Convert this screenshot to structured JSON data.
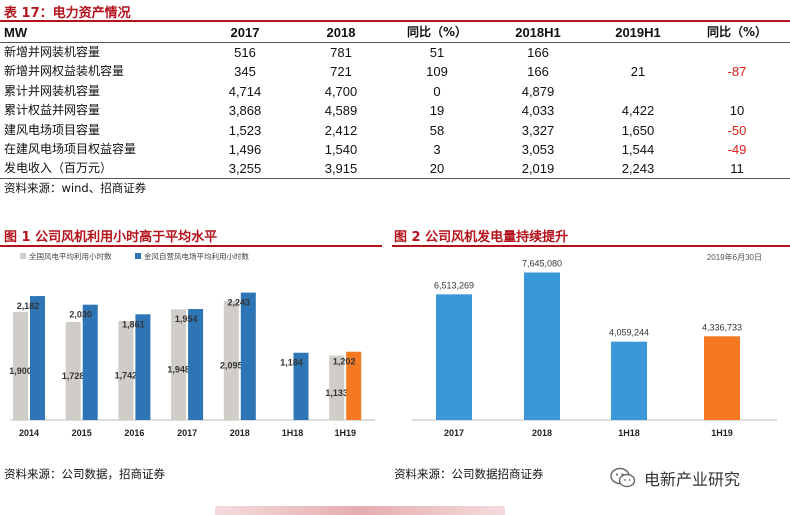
{
  "table": {
    "title": "表 17：电力资产情况",
    "header": [
      "MW",
      "2017",
      "2018",
      "同比（%）",
      "2018H1",
      "2019H1",
      "同比（%）"
    ],
    "rows": [
      {
        "label": "新增并网装机容量",
        "v2017": "516",
        "v2018": "781",
        "yoy1": "51",
        "h1_2018": "166",
        "h1_2019": "",
        "yoy2": ""
      },
      {
        "label": "新增并网权益装机容量",
        "v2017": "345",
        "v2018": "721",
        "yoy1": "109",
        "h1_2018": "166",
        "h1_2019": "21",
        "yoy2": "-87"
      },
      {
        "label": "累计并网装机容量",
        "v2017": "4,714",
        "v2018": "4,700",
        "yoy1": "0",
        "h1_2018": "4,879",
        "h1_2019": "",
        "yoy2": ""
      },
      {
        "label": "累计权益并网容量",
        "v2017": "3,868",
        "v2018": "4,589",
        "yoy1": "19",
        "h1_2018": "4,033",
        "h1_2019": "4,422",
        "yoy2": "10"
      },
      {
        "label": "建风电场项目容量",
        "v2017": "1,523",
        "v2018": "2,412",
        "yoy1": "58",
        "h1_2018": "3,327",
        "h1_2019": "1,650",
        "yoy2": "-50"
      },
      {
        "label": "在建风电场项目权益容量",
        "v2017": "1,496",
        "v2018": "1,540",
        "yoy1": "3",
        "h1_2018": "3,053",
        "h1_2019": "1,544",
        "yoy2": "-49"
      },
      {
        "label": "发电收入（百万元）",
        "v2017": "3,255",
        "v2018": "3,915",
        "yoy1": "20",
        "h1_2018": "2,019",
        "h1_2019": "2,243",
        "yoy2": "11"
      }
    ],
    "source": "资料来源：wind、招商证券"
  },
  "figure1": {
    "title": "图 1 公司风机利用小时高于平均水平",
    "source": "资料来源：公司数据，招商证券"
  },
  "figure2": {
    "title": "图 2 公司风机发电量持续提升",
    "note": "2019年6月30日",
    "source": "资料来源：公司数据招商证券"
  },
  "watermark": {
    "text": "电新产业研究"
  },
  "colors": {
    "accent": "#b5121b",
    "gray_bar": "#d0ccc7",
    "blue_bar": "#2e75b6",
    "blue_bar2": "#3a98d8",
    "orange_bar": "#f47920",
    "negative": "#e0201b"
  },
  "chart_data": [
    {
      "type": "bar",
      "categories": [
        "2014",
        "2015",
        "2016",
        "2017",
        "2018",
        "1H18",
        "1H19"
      ],
      "series": [
        {
          "name": "全国风电平均利用小时数",
          "values": [
            1900,
            1728,
            1742,
            1948,
            2095,
            null,
            1133
          ]
        },
        {
          "name": "金风自营风电场平均利用小时数",
          "values": [
            2182,
            2030,
            1861,
            1954,
            2243,
            1184,
            1202
          ]
        }
      ],
      "data_labels": [
        [
          "1,900",
          "1,728",
          "1,742",
          "1,948",
          "2,095",
          "",
          "1,133"
        ],
        [
          "2,182",
          "2,030",
          "1,861",
          "1,954",
          "2,243",
          "1,184",
          "1,202"
        ]
      ],
      "ylim": [
        0,
        2500
      ],
      "highlight_last": true,
      "legend": "top-left",
      "grid": false
    },
    {
      "type": "bar",
      "categories": [
        "2017",
        "2018",
        "1H18",
        "1H19"
      ],
      "values": [
        6513269,
        7645080,
        4059244,
        4336733
      ],
      "data_labels": [
        "6,513,269",
        "7,645,080",
        "4,059,244",
        "4,336,733"
      ],
      "ylim": [
        0,
        8500000
      ],
      "highlight_last": true,
      "grid": false
    }
  ]
}
